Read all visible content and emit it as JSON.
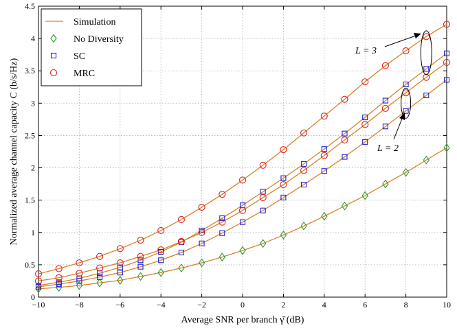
{
  "chart_data": {
    "type": "line",
    "title": "",
    "xlabel": "Average SNR per branch γ̄ (dB)",
    "ylabel": "Normalized average channel capacity C (b/s/Hz)",
    "xlim": [
      -10,
      10
    ],
    "ylim": [
      0,
      4.5
    ],
    "x_ticks": [
      -10,
      -8,
      -6,
      -4,
      -2,
      0,
      2,
      4,
      6,
      8,
      10
    ],
    "y_ticks": [
      0,
      0.5,
      1,
      1.5,
      2,
      2.5,
      3,
      3.5,
      4,
      4.5
    ],
    "x_tick_labels": [
      "−10",
      "−8",
      "−6",
      "−4",
      "−2",
      "0",
      "2",
      "4",
      "6",
      "8",
      "10"
    ],
    "y_tick_labels": [
      "0",
      "0.5",
      "1",
      "1.5",
      "2",
      "2.5",
      "3",
      "3.5",
      "4",
      "4.5"
    ],
    "grid": true,
    "legend_position": "top-left",
    "legend": [
      {
        "label": "Simulation",
        "marker": "line",
        "color": "#d7822a"
      },
      {
        "label": "No Diversity",
        "marker": "diamond",
        "color": "#2e9a2e"
      },
      {
        "label": "SC",
        "marker": "square",
        "color": "#1f1fd6"
      },
      {
        "label": "MRC",
        "marker": "circle",
        "color": "#e0201c"
      }
    ],
    "annotations": [
      "L = 3",
      "L = 2"
    ],
    "x": [
      -10,
      -9,
      -8,
      -7,
      -6,
      -5,
      -4,
      -3,
      -2,
      -1,
      0,
      1,
      2,
      3,
      4,
      5,
      6,
      7,
      8,
      9,
      10
    ],
    "series": [
      {
        "name": "No Diversity",
        "marker": "diamond",
        "color": "#2e9a2e",
        "values": [
          0.13,
          0.15,
          0.18,
          0.22,
          0.26,
          0.32,
          0.38,
          0.45,
          0.53,
          0.62,
          0.72,
          0.83,
          0.96,
          1.1,
          1.25,
          1.41,
          1.57,
          1.75,
          1.93,
          2.12,
          2.31
        ]
      },
      {
        "name": "SC, L = 2",
        "marker": "square",
        "color": "#1f1fd6",
        "values": [
          0.16,
          0.2,
          0.25,
          0.31,
          0.38,
          0.47,
          0.57,
          0.69,
          0.83,
          0.99,
          1.16,
          1.34,
          1.54,
          1.74,
          1.95,
          2.17,
          2.4,
          2.64,
          2.88,
          3.12,
          3.36
        ]
      },
      {
        "name": "SC, L = 3",
        "marker": "square",
        "color": "#1f1fd6",
        "values": [
          0.18,
          0.23,
          0.29,
          0.37,
          0.46,
          0.57,
          0.7,
          0.85,
          1.03,
          1.22,
          1.42,
          1.63,
          1.84,
          2.06,
          2.29,
          2.53,
          2.78,
          3.04,
          3.29,
          3.53,
          3.77
        ]
      },
      {
        "name": "MRC, L = 2",
        "marker": "circle",
        "color": "#e0201c",
        "values": [
          0.25,
          0.3,
          0.37,
          0.45,
          0.53,
          0.63,
          0.73,
          0.86,
          1.0,
          1.16,
          1.34,
          1.54,
          1.74,
          1.96,
          2.19,
          2.43,
          2.67,
          2.92,
          3.16,
          3.4,
          3.63
        ]
      },
      {
        "name": "MRC, L = 3",
        "marker": "circle",
        "color": "#e0201c",
        "values": [
          0.36,
          0.44,
          0.53,
          0.63,
          0.75,
          0.88,
          1.03,
          1.2,
          1.39,
          1.59,
          1.81,
          2.04,
          2.28,
          2.54,
          2.8,
          3.06,
          3.33,
          3.58,
          3.81,
          4.03,
          4.22
        ]
      }
    ],
    "simulation_line_color": "#d7822a"
  }
}
